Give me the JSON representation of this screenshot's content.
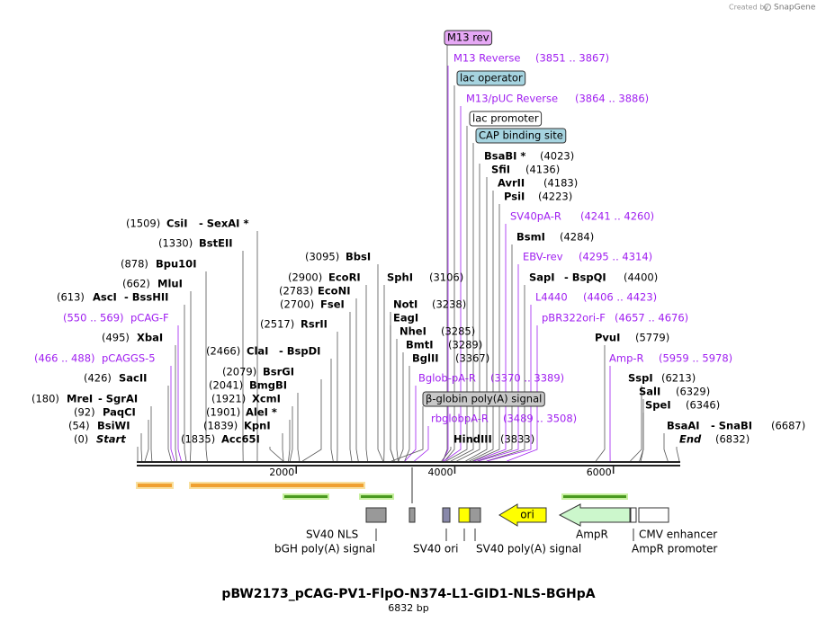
{
  "credit": {
    "prefix": "Created by",
    "brand": "SnapGene"
  },
  "title": "pBW2173_pCAG-PV1-FlpO-N374-L1-GID1-NLS-BGHpA",
  "subtitle": "6832 bp",
  "axis_ticks": [
    2000,
    4000,
    6000
  ],
  "labels": [
    {
      "name": "M13 rev"
    },
    {
      "name": "M13 Reverse",
      "location": "(3851 .. 3867)"
    },
    {
      "name": "lac operator"
    },
    {
      "name": "M13/pUC Reverse",
      "location": "(3864 .. 3886)"
    },
    {
      "name": "lac promoter"
    },
    {
      "name": "CAP binding site"
    },
    {
      "name": "BsaBI *",
      "location": "(4023)"
    },
    {
      "name": "SfiI",
      "location": "(4136)"
    },
    {
      "name": "AvrII",
      "location": "(4183)"
    },
    {
      "name": "PsiI",
      "location": "(4223)"
    },
    {
      "name": "SV40pA-R",
      "location": "(4241 .. 4260)"
    },
    {
      "name": "BsmI",
      "location": "(4284)"
    },
    {
      "name": "EBV-rev",
      "location": "(4295 .. 4314)"
    },
    {
      "name": "SapI",
      "extra": "- BspQI",
      "location": "(4400)"
    },
    {
      "name": "L4440",
      "location": "(4406 .. 4423)"
    },
    {
      "name": "pBR322ori-F",
      "location": "(4657 .. 4676)"
    },
    {
      "name": "PvuI",
      "location": "(5779)"
    },
    {
      "name": "Amp-R",
      "location": "(5959 .. 5978)"
    },
    {
      "name": "SspI",
      "location": "(6213)"
    },
    {
      "name": "SalI",
      "location": "(6329)"
    },
    {
      "name": "SpeI",
      "location": "(6346)"
    },
    {
      "name": "BsaAI",
      "extra": "- SnaBI",
      "location": "(6687)"
    },
    {
      "name": "End",
      "location": "(6832)"
    },
    {
      "name": "BbsI",
      "location": "(3095)"
    },
    {
      "name": "EcoRI",
      "location": "(2900)"
    },
    {
      "name": "EcoNI",
      "location": "(2783)"
    },
    {
      "name": "FseI",
      "location": "(2700)"
    },
    {
      "name": "RsrII",
      "location": "(2517)"
    },
    {
      "name": "SphI",
      "location": "(3106)"
    },
    {
      "name": "NotI",
      "location": "(3238)"
    },
    {
      "name": "EagI"
    },
    {
      "name": "NheI",
      "location": "(3285)"
    },
    {
      "name": "BmtI",
      "location": "(3289)"
    },
    {
      "name": "BglII",
      "location": "(3367)"
    },
    {
      "name": "Bglob-pA-R",
      "location": "(3370 .. 3389)"
    },
    {
      "name": "β-globin poly(A) signal"
    },
    {
      "name": "rbglobpA-R",
      "location": "(3489 .. 3508)"
    },
    {
      "name": "HindIII",
      "location": "(3833)"
    },
    {
      "name": "CsiI",
      "extra": "- SexAI *",
      "location": "(1509)"
    },
    {
      "name": "BstEII",
      "location": "(1330)"
    },
    {
      "name": "Bpu10I",
      "location": "(878)"
    },
    {
      "name": "MluI",
      "location": "(662)"
    },
    {
      "name": "AscI",
      "extra": "- BssHII",
      "location": "(613)"
    },
    {
      "name": "pCAG-F",
      "location": "(550 .. 569)"
    },
    {
      "name": "XbaI",
      "location": "(495)"
    },
    {
      "name": "pCAGGS-5",
      "location": "(466 .. 488)"
    },
    {
      "name": "SacII",
      "location": "(426)"
    },
    {
      "name": "MreI",
      "extra": "- SgrAI",
      "location": "(180)"
    },
    {
      "name": "PaqCI",
      "location": "(92)"
    },
    {
      "name": "BsiWI",
      "location": "(54)"
    },
    {
      "name": "Start",
      "location": "(0)"
    },
    {
      "name": "ClaI",
      "extra": "- BspDI",
      "location": "(2466)"
    },
    {
      "name": "BsrGI",
      "location": "(2079)"
    },
    {
      "name": "BmgBI",
      "location": "(2041)"
    },
    {
      "name": "XcmI",
      "location": "(1921)"
    },
    {
      "name": "AleI *",
      "location": "(1901)"
    },
    {
      "name": "KpnI",
      "location": "(1839)"
    },
    {
      "name": "Acc65I",
      "location": "(1835)"
    }
  ],
  "features": [
    "SV40 NLS",
    "bGH poly(A) signal",
    "SV40 ori",
    "SV40 poly(A) signal",
    "ori",
    "AmpR",
    "AmpR promoter",
    "CMV enhancer"
  ]
}
